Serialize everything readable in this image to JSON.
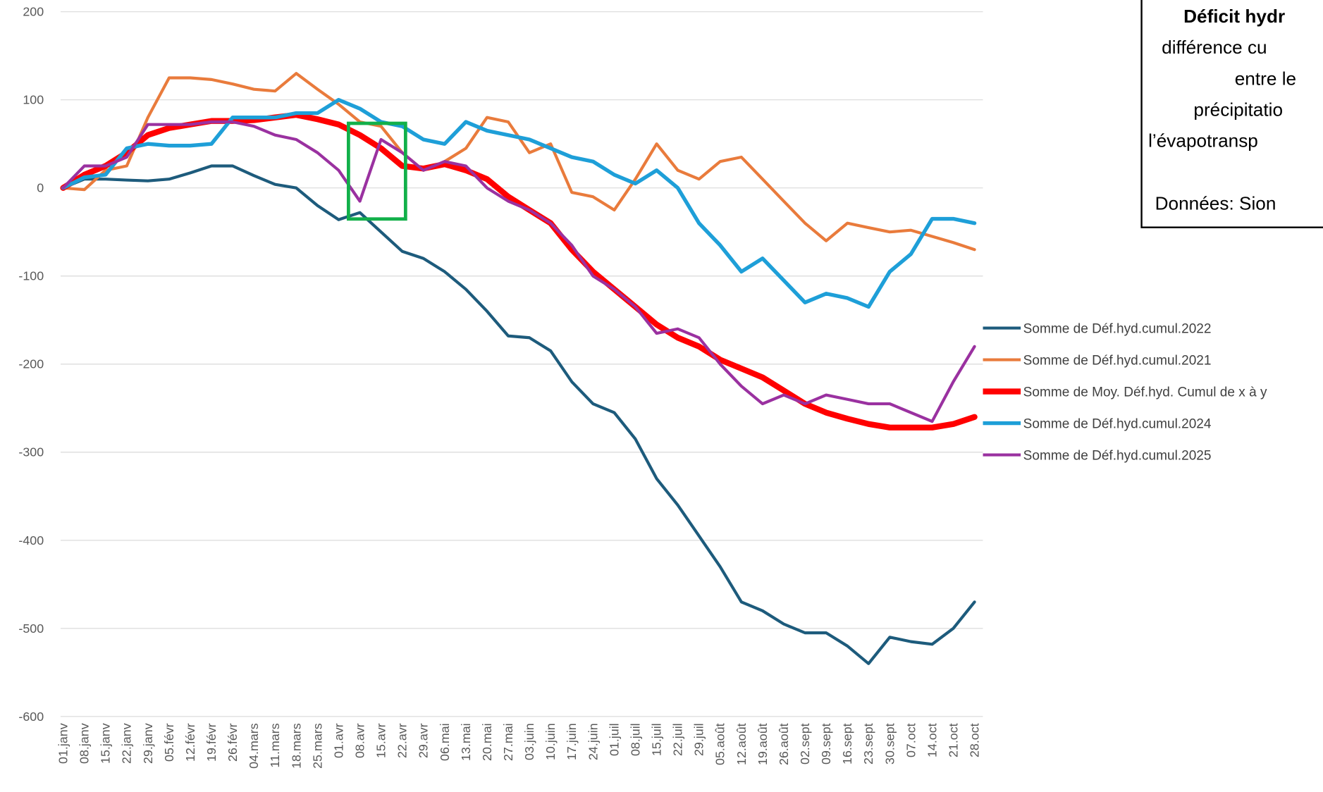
{
  "chart_data": {
    "type": "line",
    "categories": [
      "01.janv",
      "08.janv",
      "15.janv",
      "22.janv",
      "29.janv",
      "05.févr",
      "12.févr",
      "19.févr",
      "26.févr",
      "04.mars",
      "11.mars",
      "18.mars",
      "25.mars",
      "01.avr",
      "08.avr",
      "15.avr",
      "22.avr",
      "29.avr",
      "06.mai",
      "13.mai",
      "20.mai",
      "27.mai",
      "03.juin",
      "10.juin",
      "17.juin",
      "24.juin",
      "01.juil",
      "08.juil",
      "15.juil",
      "22.juil",
      "29.juil",
      "05.août",
      "12.août",
      "19.août",
      "26.août",
      "02.sept",
      "09.sept",
      "16.sept",
      "23.sept",
      "30.sept",
      "07.oct",
      "14.oct",
      "21.oct",
      "28.oct"
    ],
    "series": [
      {
        "name": "Somme de Déf.hyd.cumul.2022",
        "color": "#1d5b7c",
        "width": 3.5,
        "values": [
          0,
          10,
          10,
          9,
          8,
          10,
          17,
          25,
          25,
          14,
          4,
          0,
          -20,
          -36,
          -28,
          -50,
          -72,
          -80,
          -95,
          -115,
          -140,
          -168,
          -170,
          -185,
          -220,
          -245,
          -255,
          -285,
          -330,
          -360,
          -395,
          -430,
          -470,
          -480,
          -495,
          -505,
          -505,
          -520,
          -540,
          -510,
          -515,
          -518,
          -500,
          -470
        ]
      },
      {
        "name": "Somme de Déf.hyd.cumul.2021",
        "color": "#e97b3c",
        "width": 3.5,
        "values": [
          0,
          -2,
          20,
          25,
          80,
          125,
          125,
          123,
          118,
          112,
          110,
          130,
          112,
          95,
          75,
          70,
          40,
          20,
          30,
          45,
          80,
          75,
          40,
          50,
          -5,
          -10,
          -25,
          10,
          50,
          20,
          10,
          30,
          35,
          10,
          -15,
          -40,
          -60,
          -40,
          -45,
          -50,
          -48,
          -55,
          -62,
          -70
        ]
      },
      {
        "name": "Somme de Moy. Déf.hyd. Cumul de x à y",
        "color": "#ff0000",
        "width": 7,
        "values": [
          0,
          15,
          25,
          40,
          60,
          68,
          72,
          76,
          76,
          77,
          80,
          83,
          78,
          72,
          60,
          45,
          25,
          22,
          27,
          20,
          10,
          -10,
          -25,
          -40,
          -70,
          -95,
          -115,
          -135,
          -155,
          -170,
          -180,
          -195,
          -205,
          -215,
          -230,
          -245,
          -255,
          -262,
          -268,
          -272,
          -272,
          -272,
          -268,
          -260
        ]
      },
      {
        "name": "Somme de Déf.hyd.cumul.2024",
        "color": "#1e9fd8",
        "width": 4.5,
        "values": [
          0,
          12,
          15,
          45,
          50,
          48,
          48,
          50,
          80,
          80,
          80,
          85,
          85,
          100,
          90,
          75,
          70,
          55,
          50,
          75,
          65,
          60,
          55,
          45,
          35,
          30,
          15,
          5,
          20,
          0,
          -40,
          -65,
          -95,
          -80,
          -105,
          -130,
          -120,
          -125,
          -135,
          -95,
          -75,
          -35,
          -35,
          -40
        ]
      },
      {
        "name": "Somme de Déf.hyd.cumul.2025",
        "color": "#9a31a0",
        "width": 3.5,
        "values": [
          0,
          25,
          25,
          35,
          72,
          72,
          72,
          75,
          75,
          70,
          60,
          55,
          40,
          20,
          -15,
          55,
          40,
          20,
          30,
          25,
          0,
          -15,
          -25,
          -40,
          -65,
          -100,
          -115,
          -135,
          -165,
          -160,
          -170,
          -200,
          -225,
          -245,
          -235,
          -245,
          -235,
          -240,
          -245,
          -245,
          -255,
          -265,
          -220,
          -180
        ]
      }
    ],
    "ylim": [
      -600,
      200
    ],
    "yticks": [
      200,
      100,
      0,
      -100,
      -200,
      -300,
      -400,
      -500,
      -600
    ],
    "grid": true,
    "legend": "right",
    "annotation_title": "Déficit hydr",
    "annotation_lines": [
      "différence cu",
      "entre le",
      "précipitatio",
      "l’évapotransp",
      "Données: Sion"
    ]
  }
}
